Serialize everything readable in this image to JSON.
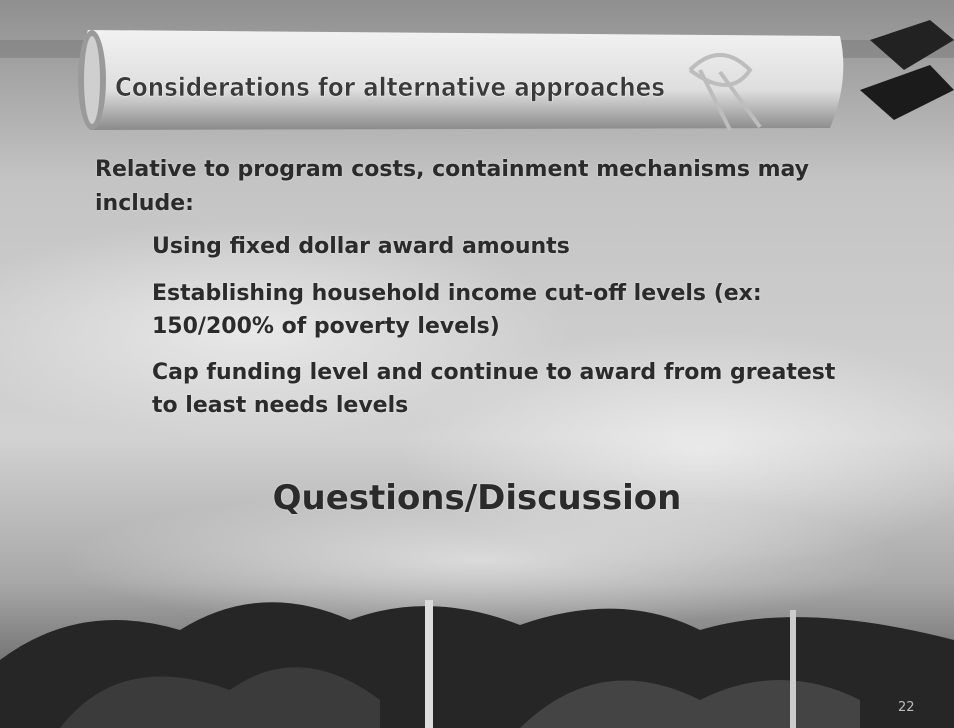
{
  "header": {
    "title": "Considerations for alternative approaches"
  },
  "intro": "Relative to program costs, containment mechanisms may include:",
  "bullets": [
    "Using fixed dollar award amounts",
    "Establishing household income cut-off levels (ex: 150/200% of poverty levels)",
    "Cap funding level and continue to award from greatest to least needs levels"
  ],
  "closing": "Questions/Discussion",
  "page_number": 22
}
